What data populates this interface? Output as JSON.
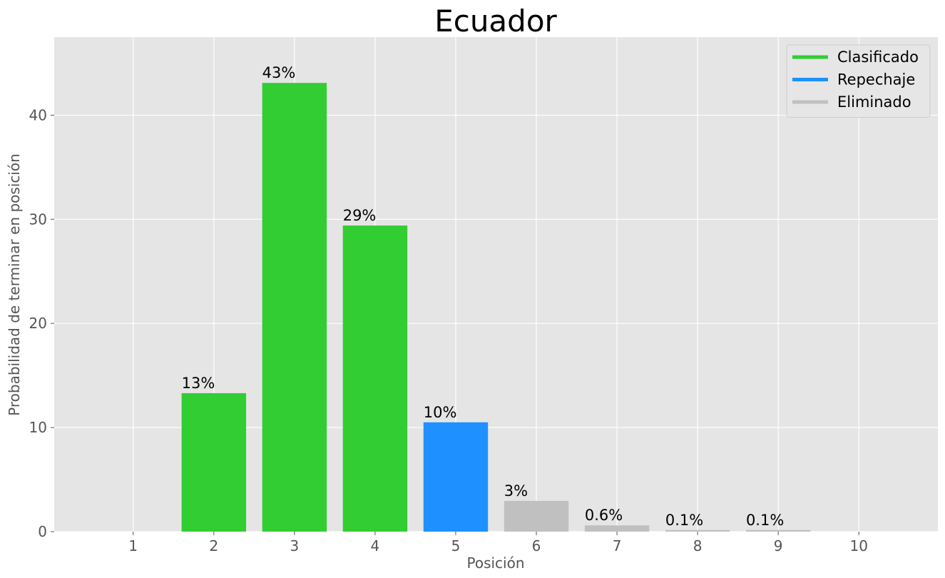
{
  "chart_data": {
    "type": "bar",
    "title": "Ecuador",
    "xlabel": "Posición",
    "ylabel": "Probabilidad de terminar en posición",
    "categories": [
      "1",
      "2",
      "3",
      "4",
      "5",
      "6",
      "7",
      "8",
      "9",
      "10"
    ],
    "values": [
      0,
      13.3,
      43.1,
      29.4,
      10.5,
      2.95,
      0.6,
      0.15,
      0.15,
      0
    ],
    "data_labels": [
      "",
      "13%",
      "43%",
      "29%",
      "10%",
      "3%",
      "0.6%",
      "0.1%",
      "0.1%",
      ""
    ],
    "status": [
      "",
      "Clasificado",
      "Clasificado",
      "Clasificado",
      "Repechaje",
      "Eliminado",
      "Eliminado",
      "Eliminado",
      "Eliminado",
      ""
    ],
    "yticks": [
      0,
      10,
      20,
      30,
      40
    ],
    "ylim": [
      0,
      47.5
    ],
    "xlim": [
      0.02,
      10.98
    ],
    "grid": true,
    "legend_position": "top-right",
    "legend": [
      {
        "label": "Clasificado",
        "color": "#32cd32"
      },
      {
        "label": "Repechaje",
        "color": "#1e90ff"
      },
      {
        "label": "Eliminado",
        "color": "#c0c0c0"
      }
    ],
    "colors": {
      "Clasificado": "#32cd32",
      "Repechaje": "#1e90ff",
      "Eliminado": "#c0c0c0",
      "plot_background": "#e5e5e5",
      "grid": "#ffffff"
    }
  }
}
